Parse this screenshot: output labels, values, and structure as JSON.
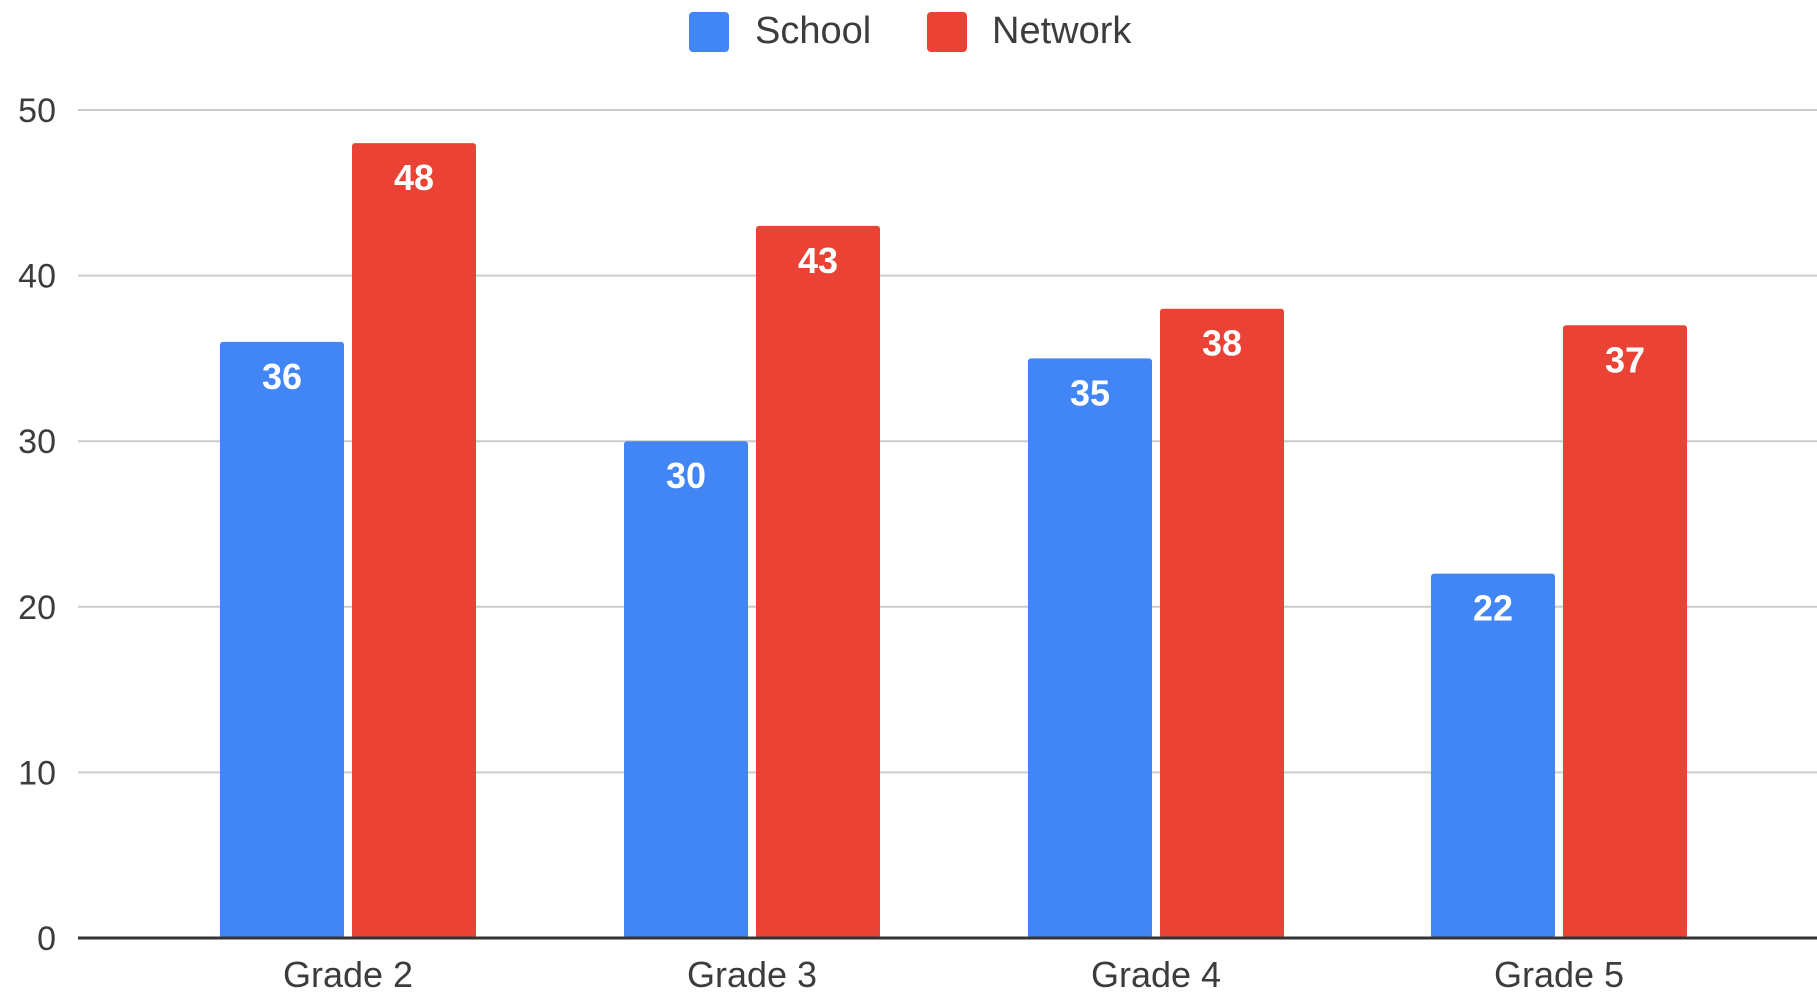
{
  "chart_data": {
    "type": "bar",
    "title": "",
    "xlabel": "",
    "ylabel": "",
    "categories": [
      "Grade 2",
      "Grade 3",
      "Grade 4",
      "Grade 5"
    ],
    "series": [
      {
        "name": "School",
        "values": [
          36,
          30,
          35,
          22
        ],
        "color": "#4285f4"
      },
      {
        "name": "Network",
        "values": [
          48,
          43,
          38,
          37
        ],
        "color": "#ea4335"
      }
    ],
    "ylim": [
      0,
      50
    ],
    "yticks": [
      "0",
      "10",
      "20",
      "30",
      "40",
      "50"
    ],
    "grid": true,
    "legend_position": "top-center",
    "data_labels": true
  }
}
